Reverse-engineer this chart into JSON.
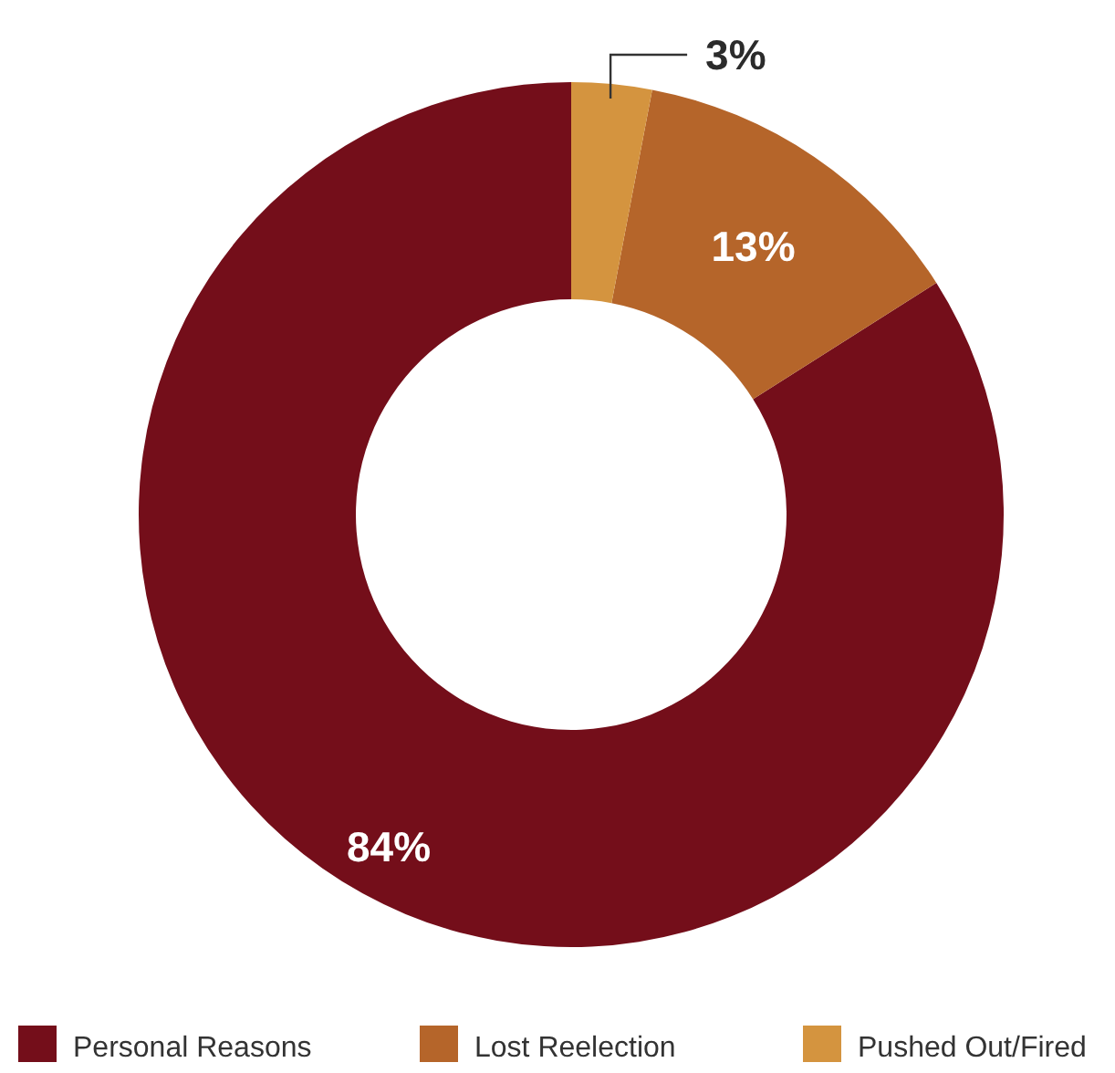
{
  "chart_data": {
    "type": "donut",
    "categories": [
      "Personal Reasons",
      "Lost Reelection",
      "Pushed Out/Fired"
    ],
    "values": [
      84,
      13,
      3
    ],
    "colors": [
      "#740e1a",
      "#b5652a",
      "#d4943f"
    ],
    "value_labels": [
      "84%",
      "13%",
      "3%"
    ],
    "legend": "bottom"
  }
}
